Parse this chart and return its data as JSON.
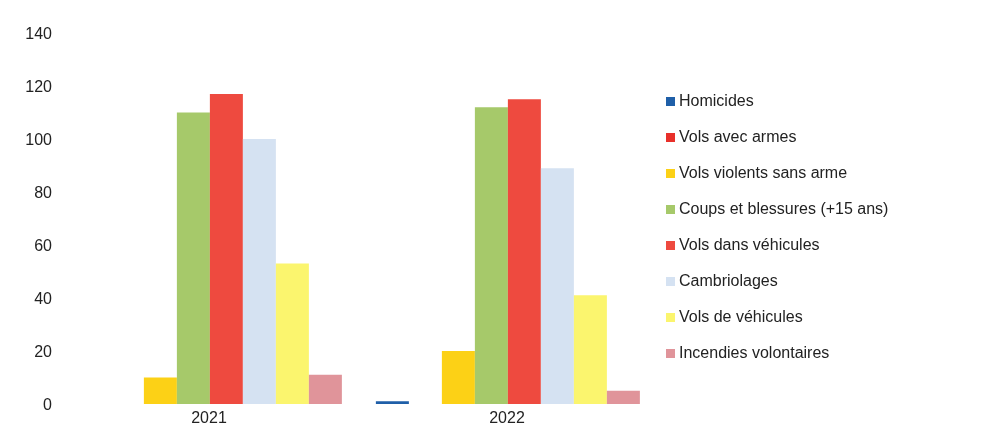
{
  "chart_data": {
    "type": "bar",
    "categories": [
      "2021",
      "2022"
    ],
    "series": [
      {
        "name": "Homicides",
        "color": "#1f5fa8",
        "values": [
          0,
          1
        ]
      },
      {
        "name": "Vols avec armes",
        "color": "#e8302a",
        "values": [
          0,
          0
        ]
      },
      {
        "name": "Vols violents sans arme",
        "color": "#fcd116",
        "values": [
          10,
          20
        ]
      },
      {
        "name": "Coups et blessures (+15 ans)",
        "color": "#a6c96a",
        "values": [
          110,
          112
        ]
      },
      {
        "name": "Vols dans véhicules",
        "color": "#ee4a3f",
        "values": [
          117,
          115
        ]
      },
      {
        "name": "Cambriolages",
        "color": "#d5e2f2",
        "values": [
          100,
          89
        ]
      },
      {
        "name": "Vols de véhicules",
        "color": "#fbf56e",
        "values": [
          53,
          41
        ]
      },
      {
        "name": "Incendies volontaires",
        "color": "#e0949a",
        "values": [
          11,
          5
        ]
      }
    ],
    "ylim": [
      0,
      140
    ],
    "yticks": [
      0,
      20,
      40,
      60,
      80,
      100,
      120,
      140
    ],
    "grid": false,
    "legend": "right"
  }
}
